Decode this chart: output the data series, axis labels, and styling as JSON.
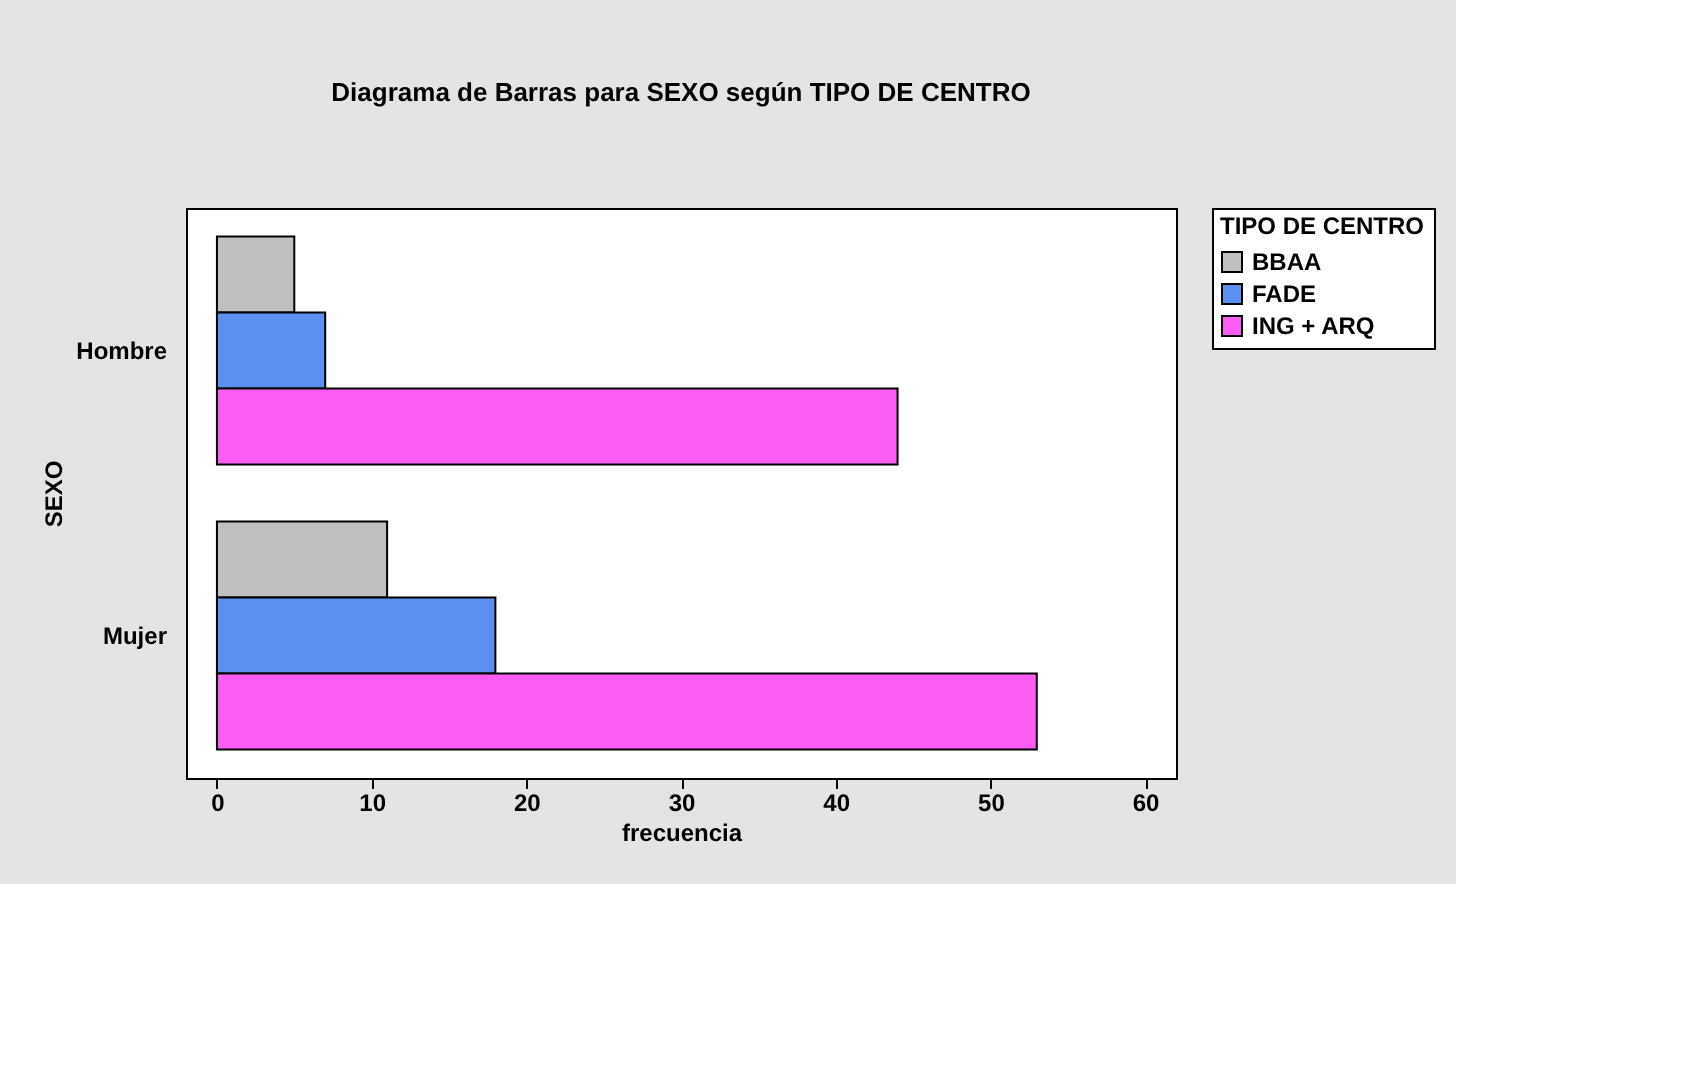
{
  "chart_data": {
    "type": "bar",
    "orientation": "horizontal",
    "title": "Diagrama de Barras para SEXO según TIPO DE CENTRO",
    "xlabel": "frecuencia",
    "ylabel": "SEXO",
    "legend_title": "TIPO DE CENTRO",
    "categories": [
      "Hombre",
      "Mujer"
    ],
    "series": [
      {
        "name": "BBAA",
        "color": "#c0c0c0",
        "values": [
          5,
          11
        ]
      },
      {
        "name": "FADE",
        "color": "#5b8ff0",
        "values": [
          7,
          18
        ]
      },
      {
        "name": "ING + ARQ",
        "color": "#fb5cf4",
        "values": [
          44,
          53
        ]
      }
    ],
    "xlim": [
      -2,
      62
    ],
    "xticks": [
      0,
      10,
      20,
      30,
      40,
      50,
      60
    ],
    "grid": false,
    "legend": "top right"
  }
}
